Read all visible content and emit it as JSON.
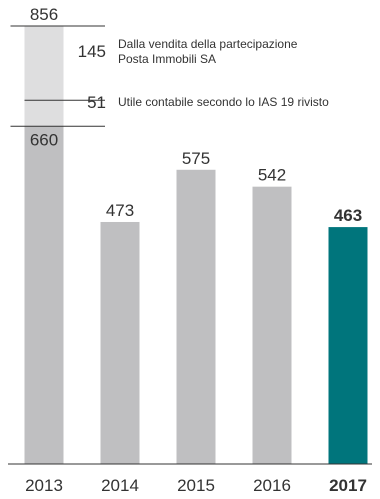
{
  "chart_data": {
    "type": "bar",
    "categories": [
      "2013",
      "2014",
      "2015",
      "2016",
      "2017"
    ],
    "values": [
      856,
      473,
      575,
      542,
      463
    ],
    "ylim": [
      0,
      856
    ],
    "grid": false,
    "highlight": {
      "category": "2017",
      "color": "#00757c"
    },
    "colors": {
      "bar": "#bfbfc1",
      "bar_light": "#dededf",
      "axis": "#333333",
      "text": "#333333"
    },
    "breakdown_2013": {
      "base": 660,
      "total": 856,
      "components": [
        {
          "value": "145",
          "label_lines": [
            "Dalla vendita della partecipazione",
            "Posta Immobili SA"
          ]
        },
        {
          "value": "51",
          "label_lines": [
            "Utile contabile secondo lo IAS 19 rivisto"
          ]
        }
      ]
    },
    "value_labels": [
      "856",
      "473",
      "575",
      "542",
      "463"
    ],
    "base_label": "660"
  }
}
